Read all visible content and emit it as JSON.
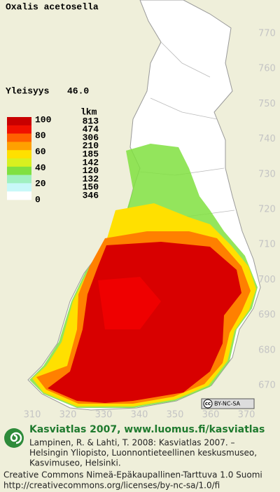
{
  "title": "Oxalis acetosella",
  "frequency": {
    "label": "Yleisyys",
    "value": "46.0"
  },
  "legend": {
    "scale": [
      "100",
      "80",
      "60",
      "40",
      "20",
      "0"
    ],
    "count_header": "lkm",
    "counts": [
      "813",
      "474",
      "306",
      "210",
      "185",
      "142",
      "120",
      "132",
      "150",
      "346"
    ],
    "colors": [
      "#c80000",
      "#f01000",
      "#ff6000",
      "#ffa000",
      "#ffe000",
      "#d8f020",
      "#80e040",
      "#a0f0c0",
      "#c8f8f8",
      "#ffffff"
    ]
  },
  "grid": {
    "northing": [
      "770",
      "760",
      "750",
      "740",
      "730",
      "720",
      "710",
      "700",
      "690",
      "680",
      "670"
    ],
    "easting": [
      "310",
      "320",
      "330",
      "340",
      "350",
      "360",
      "370"
    ]
  },
  "badge": {
    "icon": "cc",
    "text": "BY-NC-SA"
  },
  "footer": {
    "heading": "Kasviatlas 2007, www.luomus.fi/kasviatlas",
    "citation": [
      "Lampinen, R. & Lahti, T. 2008: Kasviatlas 2007. –",
      "Helsingin Yliopisto, Luonnontieteellinen keskusmuseo,",
      "Kasvimuseo, Helsinki."
    ],
    "license": [
      "Creative Commons Nimeä-Epäkaupallinen-Tarttuva 1.0 Suomi",
      "http://creativecommons.org/licenses/by-nc-sa/1.0/fi"
    ]
  }
}
